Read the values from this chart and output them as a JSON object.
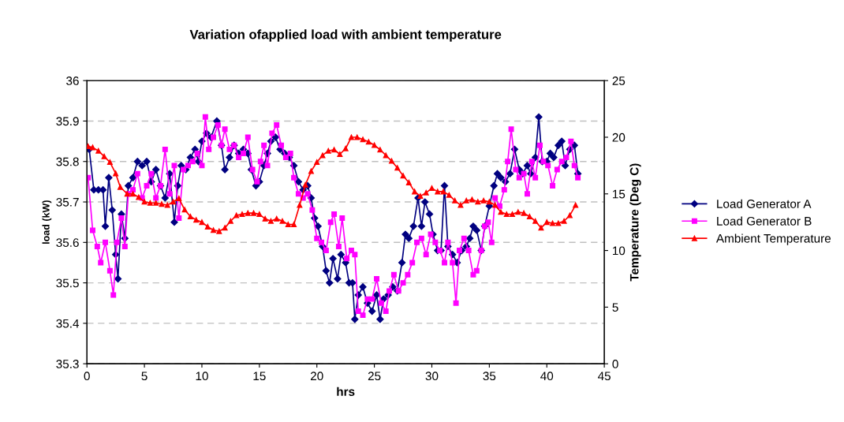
{
  "chart_data": {
    "type": "line",
    "title": "Variation ofapplied load with ambient temperature",
    "xlabel": "hrs",
    "ylabel": "load (kW)",
    "y2label": "Temperature (Deg C)",
    "xlim": [
      0,
      45
    ],
    "xticks": [
      0,
      5,
      10,
      15,
      20,
      25,
      30,
      35,
      40,
      45
    ],
    "ylim": [
      35.3,
      36
    ],
    "yticks": [
      35.3,
      35.4,
      35.5,
      35.6,
      35.7,
      35.8,
      35.9,
      36
    ],
    "y2lim": [
      0,
      25
    ],
    "y2ticks": [
      0,
      5,
      10,
      15,
      20,
      25
    ],
    "grid": "y",
    "legend": "right",
    "line_style": "solid",
    "series": [
      {
        "name": "Load Generator A",
        "color": "#000080",
        "marker": "diamond",
        "x": [
          0.2,
          0.6,
          1.0,
          1.4,
          1.6,
          1.9,
          2.2,
          2.5,
          2.7,
          3.0,
          3.3,
          3.6,
          4.0,
          4.4,
          4.8,
          5.2,
          5.6,
          6.0,
          6.4,
          6.8,
          7.2,
          7.6,
          7.9,
          8.2,
          8.6,
          9.0,
          9.4,
          9.7,
          10.0,
          10.4,
          10.8,
          11.3,
          11.7,
          12.0,
          12.4,
          12.8,
          13.2,
          13.6,
          14.0,
          14.3,
          14.7,
          15.0,
          15.4,
          15.7,
          16.0,
          16.4,
          16.8,
          17.2,
          17.6,
          18.0,
          18.4,
          18.8,
          19.2,
          19.5,
          19.8,
          20.1,
          20.5,
          20.8,
          21.1,
          21.4,
          21.8,
          22.1,
          22.5,
          22.8,
          23.1,
          23.3,
          23.6,
          24.0,
          24.4,
          24.8,
          25.2,
          25.5,
          25.8,
          26.2,
          26.6,
          27.0,
          27.4,
          27.7,
          28.0,
          28.4,
          28.8,
          29.1,
          29.4,
          29.8,
          30.1,
          30.5,
          30.8,
          31.1,
          31.4,
          31.8,
          32.2,
          32.6,
          33.0,
          33.3,
          33.6,
          33.9,
          34.3,
          34.6,
          35.0,
          35.4,
          35.7,
          36.0,
          36.4,
          36.8,
          37.2,
          37.6,
          37.9,
          38.3,
          38.6,
          39.0,
          39.3,
          39.6,
          40.0,
          40.3,
          40.6,
          41.0,
          41.3,
          41.6,
          42.0,
          42.4,
          42.7
        ],
        "values": [
          35.83,
          35.73,
          35.73,
          35.73,
          35.64,
          35.76,
          35.68,
          35.57,
          35.51,
          35.67,
          35.61,
          35.74,
          35.76,
          35.8,
          35.79,
          35.8,
          35.75,
          35.78,
          35.74,
          35.71,
          35.77,
          35.65,
          35.74,
          35.79,
          35.78,
          35.81,
          35.83,
          35.8,
          35.85,
          35.87,
          35.86,
          35.9,
          35.84,
          35.78,
          35.81,
          35.84,
          35.82,
          35.83,
          35.82,
          35.78,
          35.74,
          35.75,
          35.79,
          35.82,
          35.85,
          35.86,
          35.83,
          35.82,
          35.81,
          35.79,
          35.75,
          35.73,
          35.74,
          35.71,
          35.66,
          35.64,
          35.59,
          35.53,
          35.5,
          35.56,
          35.51,
          35.57,
          35.55,
          35.5,
          35.5,
          35.41,
          35.47,
          35.49,
          35.45,
          35.43,
          35.47,
          35.41,
          35.46,
          35.47,
          35.49,
          35.48,
          35.55,
          35.62,
          35.61,
          35.64,
          35.71,
          35.64,
          35.7,
          35.67,
          35.62,
          35.58,
          35.58,
          35.74,
          35.59,
          35.57,
          35.55,
          35.58,
          35.59,
          35.61,
          35.64,
          35.63,
          35.58,
          35.64,
          35.69,
          35.74,
          35.77,
          35.76,
          35.75,
          35.77,
          35.83,
          35.78,
          35.77,
          35.79,
          35.77,
          35.81,
          35.91,
          35.8,
          35.8,
          35.82,
          35.81,
          35.84,
          35.85,
          35.79,
          35.83,
          35.84,
          35.77
        ]
      },
      {
        "name": "Load Generator B",
        "color": "#ff00ff",
        "marker": "square",
        "x": [
          0.1,
          0.5,
          0.9,
          1.2,
          1.6,
          2.0,
          2.3,
          2.6,
          3.0,
          3.3,
          3.6,
          4.0,
          4.4,
          4.8,
          5.2,
          5.6,
          6.0,
          6.4,
          6.8,
          7.2,
          7.6,
          8.0,
          8.4,
          8.8,
          9.2,
          9.6,
          10.0,
          10.3,
          10.6,
          11.0,
          11.4,
          11.7,
          12.0,
          12.4,
          12.8,
          13.2,
          13.6,
          14.0,
          14.4,
          14.8,
          15.1,
          15.4,
          15.7,
          16.1,
          16.5,
          16.9,
          17.3,
          17.7,
          18.0,
          18.4,
          18.8,
          19.2,
          19.6,
          20.0,
          20.4,
          20.8,
          21.2,
          21.5,
          21.9,
          22.2,
          22.6,
          23.0,
          23.3,
          23.6,
          24.0,
          24.4,
          24.8,
          25.2,
          25.6,
          26.0,
          26.3,
          26.7,
          27.1,
          27.5,
          27.9,
          28.3,
          28.7,
          29.1,
          29.5,
          29.9,
          30.3,
          30.7,
          31.1,
          31.4,
          31.8,
          32.1,
          32.4,
          32.8,
          33.2,
          33.6,
          33.9,
          34.3,
          34.6,
          34.9,
          35.2,
          35.5,
          35.9,
          36.3,
          36.6,
          36.9,
          37.3,
          37.6,
          38.0,
          38.3,
          38.7,
          39.0,
          39.4,
          39.7,
          40.1,
          40.5,
          40.9,
          41.3,
          41.7,
          42.1,
          42.4,
          42.7
        ],
        "values": [
          35.76,
          35.63,
          35.59,
          35.55,
          35.6,
          35.53,
          35.47,
          35.6,
          35.66,
          35.59,
          35.72,
          35.73,
          35.77,
          35.71,
          35.74,
          35.77,
          35.71,
          35.74,
          35.83,
          35.72,
          35.79,
          35.66,
          35.78,
          35.79,
          35.8,
          35.82,
          35.79,
          35.91,
          35.83,
          35.86,
          35.89,
          35.84,
          35.88,
          35.83,
          35.84,
          35.81,
          35.82,
          35.86,
          35.78,
          35.75,
          35.8,
          35.84,
          35.79,
          35.87,
          35.89,
          35.84,
          35.81,
          35.82,
          35.76,
          35.72,
          35.71,
          35.72,
          35.68,
          35.61,
          35.6,
          35.58,
          35.65,
          35.67,
          35.59,
          35.66,
          35.56,
          35.58,
          35.57,
          35.43,
          35.42,
          35.46,
          35.46,
          35.51,
          35.45,
          35.43,
          35.48,
          35.52,
          35.48,
          35.5,
          35.52,
          35.55,
          35.6,
          35.61,
          35.57,
          35.62,
          35.6,
          35.58,
          35.55,
          35.6,
          35.55,
          35.45,
          35.58,
          35.61,
          35.58,
          35.52,
          35.53,
          35.58,
          35.64,
          35.65,
          35.6,
          35.71,
          35.69,
          35.73,
          35.8,
          35.88,
          35.78,
          35.76,
          35.77,
          35.72,
          35.8,
          35.76,
          35.84,
          35.8,
          35.79,
          35.74,
          35.78,
          35.8,
          35.81,
          35.85,
          35.79,
          35.76
        ]
      },
      {
        "name": "Ambient Temperature",
        "color": "#ff0000",
        "marker": "triangle",
        "axis": "y2",
        "x": [
          0.1,
          0.5,
          1.0,
          1.5,
          2.0,
          2.5,
          2.9,
          3.5,
          4.0,
          4.5,
          5.0,
          5.5,
          6.0,
          6.5,
          7.0,
          7.5,
          8.0,
          8.5,
          9.0,
          9.5,
          10.0,
          10.5,
          11.0,
          11.5,
          12.0,
          12.5,
          13.0,
          13.5,
          14.0,
          14.5,
          15.0,
          15.5,
          16.0,
          16.5,
          17.0,
          17.5,
          18.0,
          18.5,
          19.0,
          19.5,
          20.0,
          20.5,
          21.0,
          21.5,
          22.0,
          22.5,
          23.0,
          23.5,
          24.0,
          24.5,
          25.0,
          25.5,
          26.0,
          26.5,
          27.0,
          27.5,
          28.0,
          28.5,
          29.0,
          29.5,
          30.0,
          30.5,
          31.0,
          31.5,
          32.0,
          32.5,
          33.0,
          33.5,
          34.0,
          34.5,
          35.0,
          35.5,
          36.0,
          36.5,
          37.0,
          37.5,
          38.0,
          38.5,
          39.0,
          39.5,
          40.0,
          40.5,
          41.0,
          41.5,
          42.0,
          42.5
        ],
        "values": [
          19.2,
          19.1,
          18.8,
          18.3,
          17.8,
          16.8,
          15.6,
          15.0,
          15.0,
          14.7,
          14.3,
          14.2,
          14.2,
          14.1,
          14.0,
          14.3,
          14.6,
          13.6,
          13.0,
          12.7,
          12.5,
          12.1,
          11.8,
          11.7,
          12.0,
          12.6,
          13.1,
          13.2,
          13.3,
          13.3,
          13.2,
          12.8,
          12.6,
          12.8,
          12.6,
          12.3,
          12.3,
          14.0,
          15.8,
          17.0,
          17.8,
          18.4,
          18.8,
          18.9,
          18.5,
          19.0,
          20.0,
          20.0,
          19.8,
          19.6,
          19.3,
          18.9,
          18.4,
          17.9,
          17.3,
          16.6,
          16.0,
          15.2,
          14.8,
          15.1,
          15.5,
          15.2,
          15.2,
          14.9,
          14.4,
          14.0,
          14.4,
          14.5,
          14.3,
          14.4,
          14.3,
          14.0,
          13.4,
          13.2,
          13.2,
          13.4,
          13.3,
          13.0,
          12.6,
          12.0,
          12.5,
          12.4,
          12.4,
          12.6,
          13.1,
          14.0
        ]
      }
    ]
  }
}
